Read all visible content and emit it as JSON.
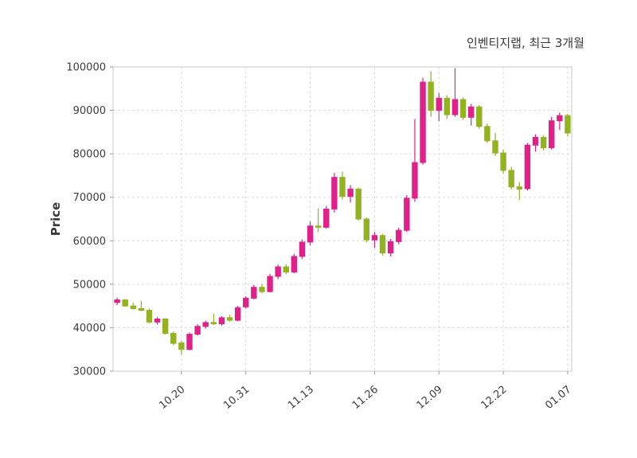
{
  "header": {
    "title": "인벤티지랩, 최근 3개월"
  },
  "chart_data": {
    "type": "candlestick",
    "title": "인벤티지랩, 최근 3개월",
    "ylabel": "Price",
    "ylim": [
      30000,
      100000
    ],
    "yticks": [
      30000,
      40000,
      50000,
      60000,
      70000,
      80000,
      90000,
      100000
    ],
    "ytick_labels": [
      "30000",
      "40000",
      "50000",
      "60000",
      "70000",
      "80000",
      "90000",
      "100000"
    ],
    "xticks": [
      {
        "index": 8,
        "label": "10.20"
      },
      {
        "index": 16,
        "label": "10.31"
      },
      {
        "index": 24,
        "label": "11.13"
      },
      {
        "index": 32,
        "label": "11.26"
      },
      {
        "index": 40,
        "label": "12.09"
      },
      {
        "index": 48,
        "label": "12.22"
      },
      {
        "index": 56,
        "label": "01.07"
      }
    ],
    "grid": true,
    "legend": "none",
    "colors": {
      "up": "#e0218a",
      "down": "#92b220",
      "grid": "#dcdcdc",
      "border": "#c9c9c9",
      "text": "#3c3c3c",
      "background": "#ffffff"
    },
    "candles_ohlc": [
      [
        45800,
        46900,
        45200,
        46400
      ],
      [
        46400,
        46600,
        44800,
        45000
      ],
      [
        45000,
        45800,
        44200,
        44400
      ],
      [
        44400,
        46200,
        43800,
        44000
      ],
      [
        44000,
        44400,
        41000,
        41300
      ],
      [
        41300,
        42500,
        40700,
        42000
      ],
      [
        42000,
        42200,
        38400,
        38700
      ],
      [
        38700,
        39100,
        36000,
        36400
      ],
      [
        36500,
        37000,
        33800,
        35000
      ],
      [
        35000,
        38900,
        34800,
        38500
      ],
      [
        38500,
        40800,
        38200,
        40300
      ],
      [
        40300,
        41600,
        39800,
        41200
      ],
      [
        41200,
        43200,
        40600,
        40900
      ],
      [
        40900,
        42600,
        40500,
        42300
      ],
      [
        42300,
        43000,
        41400,
        41700
      ],
      [
        41700,
        45000,
        41500,
        44600
      ],
      [
        44800,
        47200,
        44400,
        46800
      ],
      [
        46800,
        49800,
        46500,
        49300
      ],
      [
        49300,
        50100,
        47900,
        48300
      ],
      [
        48300,
        52400,
        48100,
        51800
      ],
      [
        51800,
        54500,
        51200,
        54000
      ],
      [
        54000,
        54600,
        52300,
        52800
      ],
      [
        52800,
        57000,
        52500,
        56400
      ],
      [
        56400,
        60300,
        55800,
        59700
      ],
      [
        59700,
        64500,
        58900,
        63400
      ],
      [
        63400,
        67500,
        62000,
        63100
      ],
      [
        63100,
        68000,
        62800,
        67300
      ],
      [
        67300,
        75600,
        66500,
        74600
      ],
      [
        74600,
        75900,
        69500,
        70200
      ],
      [
        70200,
        72800,
        68800,
        71900
      ],
      [
        71900,
        72200,
        64600,
        65000
      ],
      [
        65000,
        65400,
        59600,
        60200
      ],
      [
        60200,
        62000,
        58400,
        61200
      ],
      [
        61200,
        61600,
        56600,
        57200
      ],
      [
        57200,
        60400,
        56400,
        59800
      ],
      [
        59800,
        63000,
        59200,
        62400
      ],
      [
        62400,
        70500,
        62000,
        69800
      ],
      [
        69800,
        88000,
        69000,
        78000
      ],
      [
        78000,
        97500,
        77500,
        96500
      ],
      [
        96500,
        99000,
        88500,
        90000
      ],
      [
        90000,
        94000,
        87500,
        92800
      ],
      [
        92800,
        93500,
        88000,
        89000
      ],
      [
        89000,
        99700,
        88500,
        92500
      ],
      [
        92500,
        93000,
        87800,
        88400
      ],
      [
        88400,
        91500,
        86500,
        90800
      ],
      [
        90800,
        91200,
        85800,
        86300
      ],
      [
        86300,
        87000,
        82500,
        83000
      ],
      [
        83000,
        84800,
        79500,
        80200
      ],
      [
        80200,
        81000,
        75500,
        76200
      ],
      [
        76200,
        77000,
        71800,
        72400
      ],
      [
        72400,
        73500,
        69400,
        71900
      ],
      [
        72000,
        82500,
        71600,
        82000
      ],
      [
        82000,
        84500,
        80500,
        83800
      ],
      [
        83800,
        84200,
        80800,
        81400
      ],
      [
        81400,
        88500,
        81000,
        87600
      ],
      [
        87600,
        89500,
        85500,
        88800
      ],
      [
        88800,
        89200,
        84000,
        84800
      ]
    ]
  }
}
